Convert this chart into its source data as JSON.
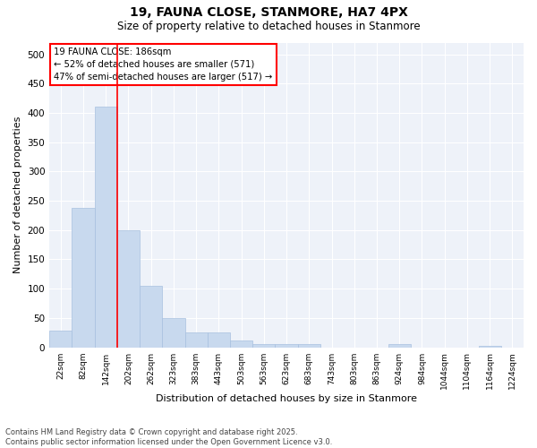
{
  "title1": "19, FAUNA CLOSE, STANMORE, HA7 4PX",
  "title2": "Size of property relative to detached houses in Stanmore",
  "xlabel": "Distribution of detached houses by size in Stanmore",
  "ylabel": "Number of detached properties",
  "bar_color": "#c8d9ee",
  "bar_edge_color": "#a8c0df",
  "categories": [
    "22sqm",
    "82sqm",
    "142sqm",
    "202sqm",
    "262sqm",
    "323sqm",
    "383sqm",
    "443sqm",
    "503sqm",
    "563sqm",
    "623sqm",
    "683sqm",
    "743sqm",
    "803sqm",
    "863sqm",
    "924sqm",
    "984sqm",
    "1044sqm",
    "1104sqm",
    "1164sqm",
    "1224sqm"
  ],
  "values": [
    28,
    238,
    410,
    200,
    105,
    50,
    25,
    25,
    12,
    5,
    5,
    5,
    0,
    0,
    0,
    5,
    0,
    0,
    0,
    2,
    0
  ],
  "annotation_text": "19 FAUNA CLOSE: 186sqm\n← 52% of detached houses are smaller (571)\n47% of semi-detached houses are larger (517) →",
  "vline_bar_index": 2,
  "vline_color": "red",
  "annotation_box_color": "white",
  "annotation_box_edge_color": "red",
  "ylim": [
    0,
    520
  ],
  "yticks": [
    0,
    50,
    100,
    150,
    200,
    250,
    300,
    350,
    400,
    450,
    500
  ],
  "bg_color": "#eef2f9",
  "grid_color": "white",
  "footer_line1": "Contains HM Land Registry data © Crown copyright and database right 2025.",
  "footer_line2": "Contains public sector information licensed under the Open Government Licence v3.0."
}
